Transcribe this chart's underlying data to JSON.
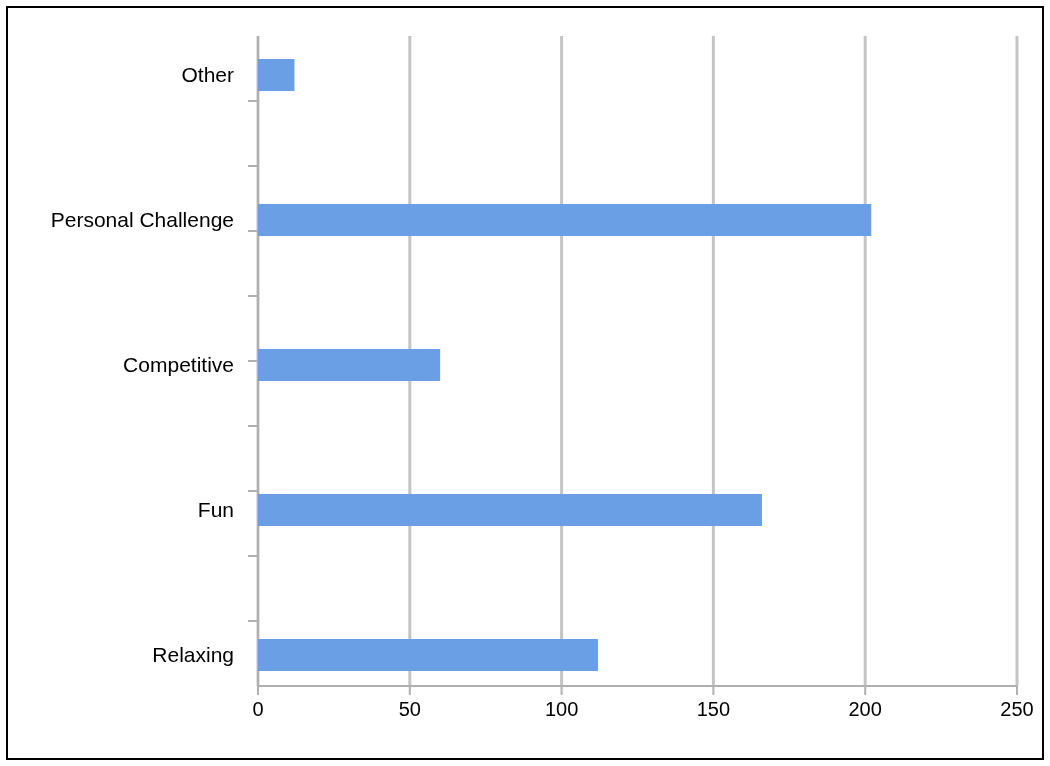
{
  "chart_data": {
    "type": "bar",
    "orientation": "horizontal",
    "categories": [
      "Other",
      "Personal Challenge",
      "Competitive",
      "Fun",
      "Relaxing"
    ],
    "values": [
      12,
      202,
      60,
      166,
      112
    ],
    "color": "#6a9fe6",
    "xlim": [
      0,
      250
    ],
    "xticks": [
      0,
      50,
      100,
      150,
      200,
      250
    ],
    "grid": "x"
  }
}
